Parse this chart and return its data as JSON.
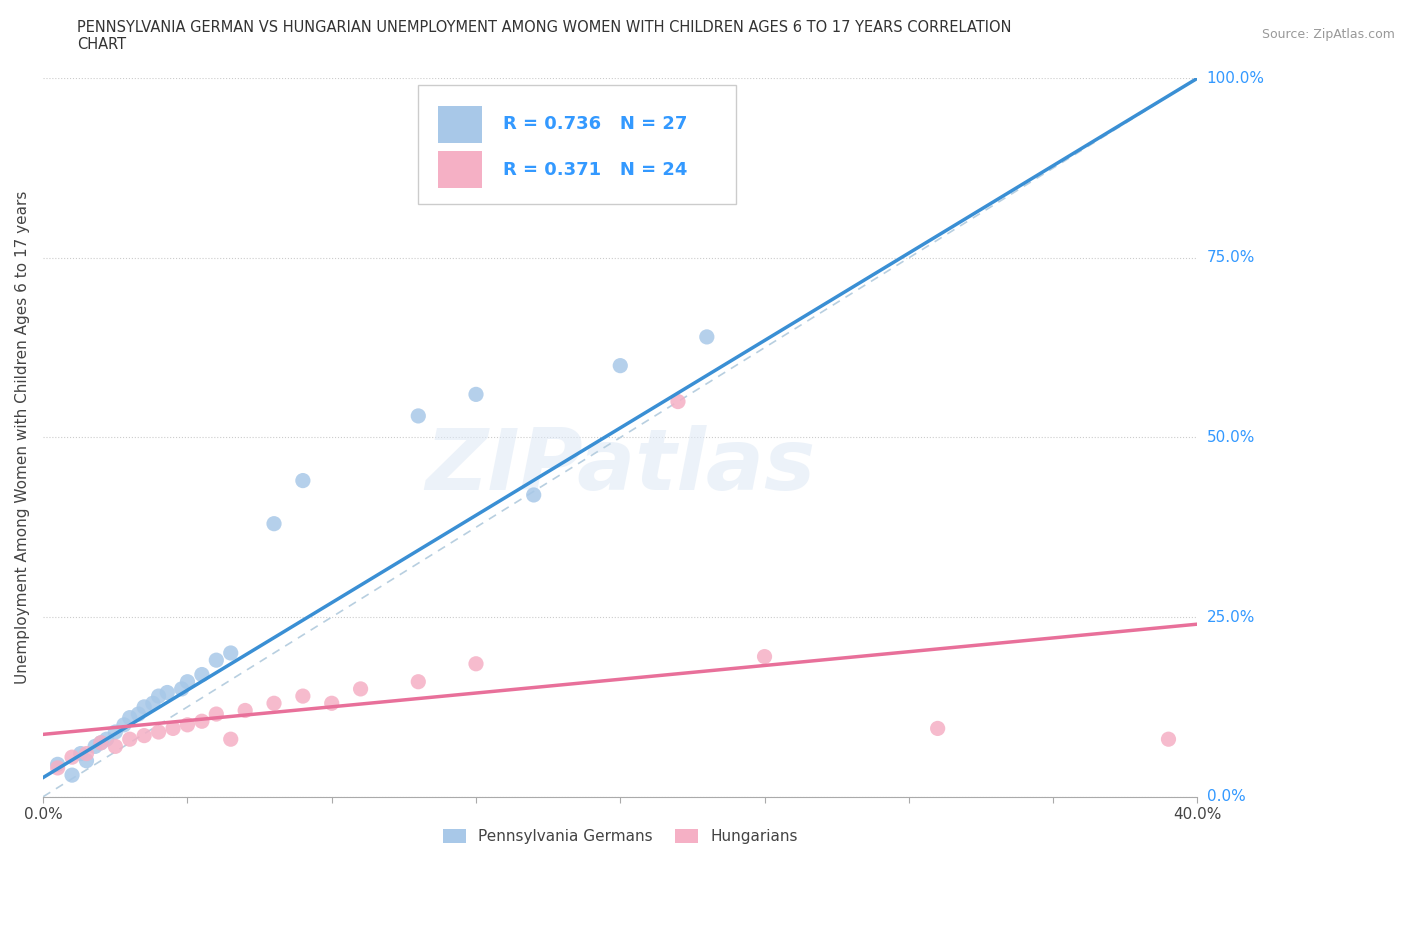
{
  "title_line1": "PENNSYLVANIA GERMAN VS HUNGARIAN UNEMPLOYMENT AMONG WOMEN WITH CHILDREN AGES 6 TO 17 YEARS CORRELATION",
  "title_line2": "CHART",
  "source": "Source: ZipAtlas.com",
  "ylabel": "Unemployment Among Women with Children Ages 6 to 17 years",
  "xlim": [
    0.0,
    0.4
  ],
  "ylim": [
    0.0,
    1.0
  ],
  "ytick_values": [
    0.0,
    0.25,
    0.5,
    0.75,
    1.0
  ],
  "ytick_labels": [
    "0.0%",
    "25.0%",
    "50.0%",
    "75.0%",
    "100.0%"
  ],
  "xtick_values": [
    0.0,
    0.05,
    0.1,
    0.15,
    0.2,
    0.25,
    0.3,
    0.35,
    0.4
  ],
  "background_color": "#ffffff",
  "german_color": "#a8c8e8",
  "hungarian_color": "#f5b0c5",
  "german_line_color": "#3a8fd4",
  "hungarian_line_color": "#e8709a",
  "diagonal_color": "#c0d8ee",
  "text_color_blue": "#3399ff",
  "text_color_dark": "#444444",
  "R_german": "0.736",
  "N_german": "27",
  "R_hungarian": "0.371",
  "N_hungarian": "24",
  "german_scatter_x": [
    0.005,
    0.01,
    0.013,
    0.015,
    0.018,
    0.02,
    0.022,
    0.025,
    0.028,
    0.03,
    0.033,
    0.035,
    0.038,
    0.04,
    0.043,
    0.048,
    0.05,
    0.055,
    0.06,
    0.065,
    0.08,
    0.09,
    0.13,
    0.15,
    0.17,
    0.2,
    0.23
  ],
  "german_scatter_y": [
    0.045,
    0.03,
    0.06,
    0.05,
    0.07,
    0.075,
    0.08,
    0.09,
    0.1,
    0.11,
    0.115,
    0.125,
    0.13,
    0.14,
    0.145,
    0.15,
    0.16,
    0.17,
    0.19,
    0.2,
    0.38,
    0.44,
    0.53,
    0.56,
    0.42,
    0.6,
    0.64
  ],
  "hungarian_scatter_x": [
    0.005,
    0.01,
    0.015,
    0.02,
    0.025,
    0.03,
    0.035,
    0.04,
    0.045,
    0.05,
    0.055,
    0.06,
    0.065,
    0.07,
    0.08,
    0.09,
    0.1,
    0.11,
    0.13,
    0.15,
    0.22,
    0.25,
    0.31,
    0.39
  ],
  "hungarian_scatter_y": [
    0.04,
    0.055,
    0.06,
    0.075,
    0.07,
    0.08,
    0.085,
    0.09,
    0.095,
    0.1,
    0.105,
    0.115,
    0.08,
    0.12,
    0.13,
    0.14,
    0.13,
    0.15,
    0.16,
    0.185,
    0.55,
    0.195,
    0.095,
    0.08
  ],
  "watermark": "ZIPatlas",
  "legend_label_german": "Pennsylvania Germans",
  "legend_label_hungarian": "Hungarians"
}
